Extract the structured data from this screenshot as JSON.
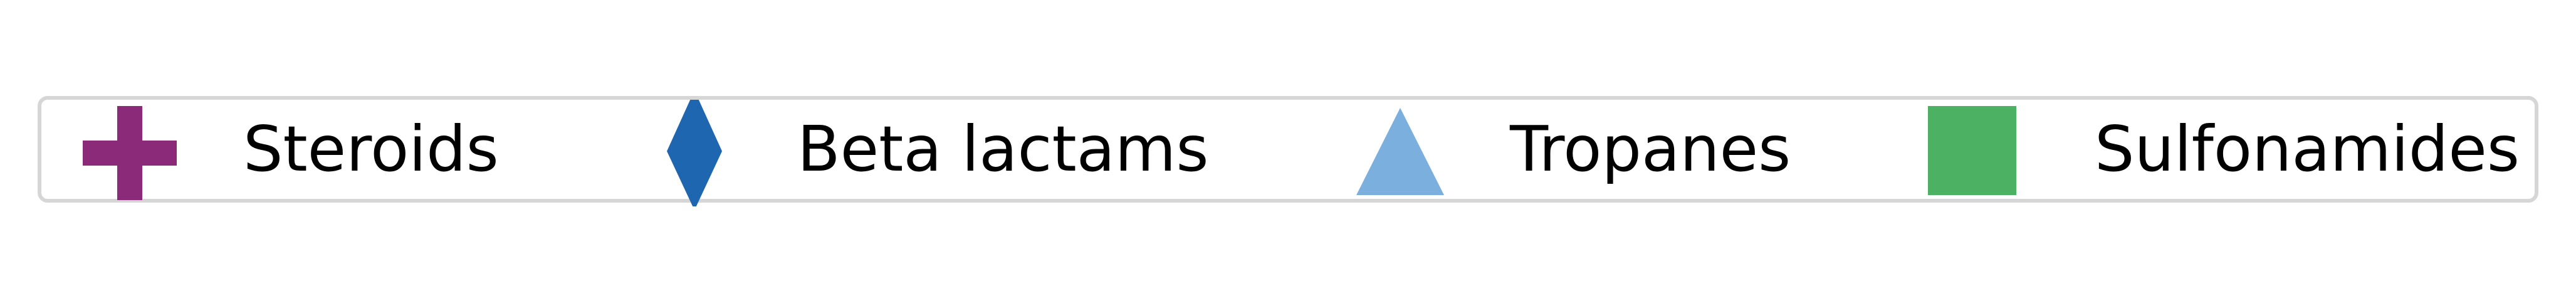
{
  "chart_data": {
    "type": "legend",
    "legend_placement": "horizontal-strip",
    "entries": [
      {
        "label": "Steroids",
        "marker": "plus-icon",
        "color": "#8B2A78"
      },
      {
        "label": "Beta lactams",
        "marker": "diamond-icon",
        "color": "#1F66B1"
      },
      {
        "label": "Tropanes",
        "marker": "triangle-icon",
        "color": "#7BAFDE"
      },
      {
        "label": "Sulfonamides",
        "marker": "square-icon",
        "color": "#4DB164"
      }
    ]
  }
}
